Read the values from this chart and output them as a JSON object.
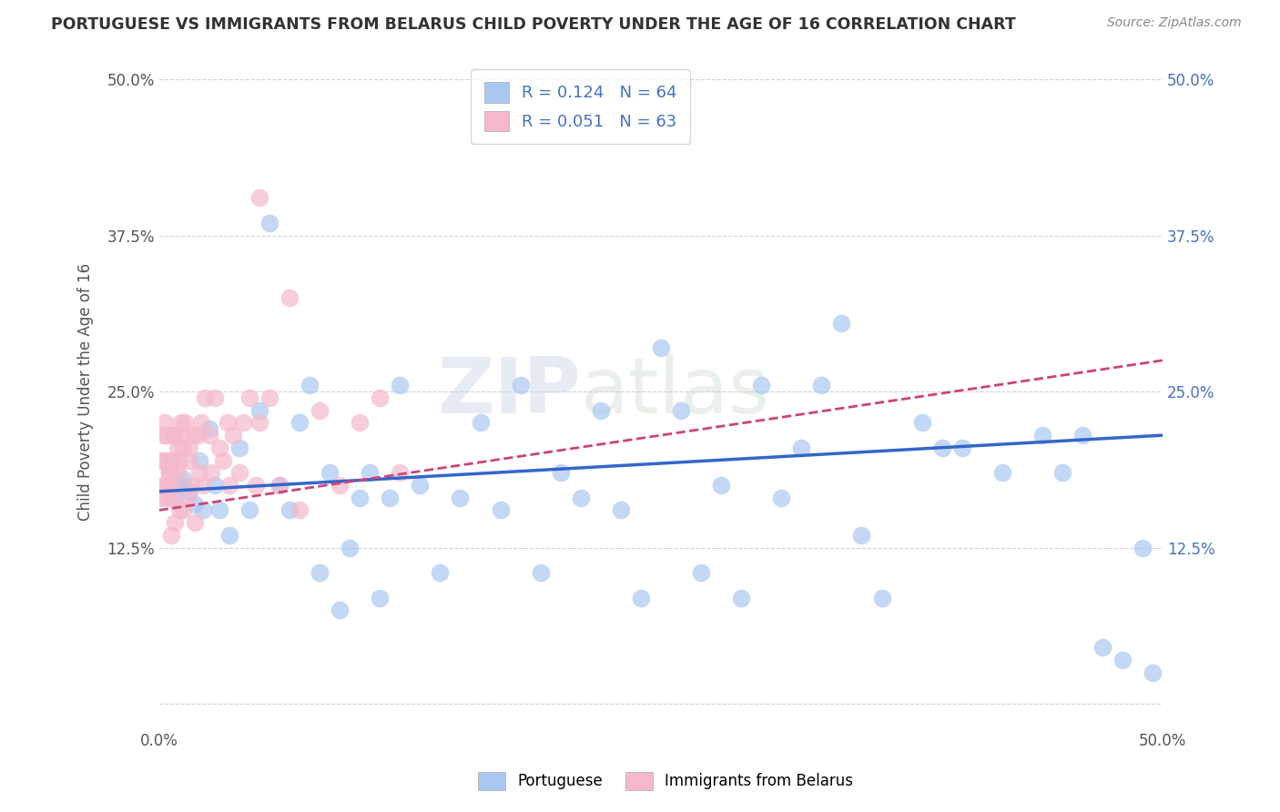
{
  "title": "PORTUGUESE VS IMMIGRANTS FROM BELARUS CHILD POVERTY UNDER THE AGE OF 16 CORRELATION CHART",
  "source": "Source: ZipAtlas.com",
  "ylabel": "Child Poverty Under the Age of 16",
  "xlim": [
    0,
    0.5
  ],
  "ylim": [
    -0.02,
    0.52
  ],
  "xticks": [
    0.0,
    0.5
  ],
  "yticks": [
    0.0,
    0.125,
    0.25,
    0.375,
    0.5
  ],
  "xtick_labels": [
    "0.0%",
    "50.0%"
  ],
  "ytick_labels": [
    "",
    "12.5%",
    "25.0%",
    "37.5%",
    "50.0%"
  ],
  "blue_R": 0.124,
  "blue_N": 64,
  "pink_R": 0.051,
  "pink_N": 63,
  "blue_color": "#a8c8f0",
  "pink_color": "#f5b8cb",
  "blue_line_color": "#3366cc",
  "pink_line_color": "#cc4477",
  "watermark_zip": "ZIP",
  "watermark_atlas": "atlas",
  "legend_label_blue": "Portuguese",
  "legend_label_pink": "Immigrants from Belarus",
  "background_color": "#ffffff",
  "grid_color": "#cccccc",
  "blue_x": [
    0.005,
    0.008,
    0.01,
    0.012,
    0.015,
    0.018,
    0.02,
    0.022,
    0.025,
    0.028,
    0.03,
    0.035,
    0.04,
    0.045,
    0.05,
    0.055,
    0.06,
    0.065,
    0.07,
    0.075,
    0.08,
    0.085,
    0.09,
    0.095,
    0.1,
    0.105,
    0.11,
    0.115,
    0.12,
    0.13,
    0.14,
    0.15,
    0.16,
    0.17,
    0.18,
    0.19,
    0.2,
    0.21,
    0.22,
    0.23,
    0.24,
    0.25,
    0.26,
    0.27,
    0.28,
    0.29,
    0.3,
    0.31,
    0.32,
    0.33,
    0.34,
    0.35,
    0.36,
    0.38,
    0.39,
    0.4,
    0.42,
    0.44,
    0.45,
    0.46,
    0.47,
    0.48,
    0.49,
    0.495
  ],
  "blue_y": [
    0.19,
    0.165,
    0.175,
    0.18,
    0.17,
    0.16,
    0.195,
    0.155,
    0.22,
    0.175,
    0.155,
    0.135,
    0.205,
    0.155,
    0.235,
    0.385,
    0.175,
    0.155,
    0.225,
    0.255,
    0.105,
    0.185,
    0.075,
    0.125,
    0.165,
    0.185,
    0.085,
    0.165,
    0.255,
    0.175,
    0.105,
    0.165,
    0.225,
    0.155,
    0.255,
    0.105,
    0.185,
    0.165,
    0.235,
    0.155,
    0.085,
    0.285,
    0.235,
    0.105,
    0.175,
    0.085,
    0.255,
    0.165,
    0.205,
    0.255,
    0.305,
    0.135,
    0.085,
    0.225,
    0.205,
    0.205,
    0.185,
    0.215,
    0.185,
    0.215,
    0.045,
    0.035,
    0.125,
    0.025
  ],
  "pink_x": [
    0.001,
    0.001,
    0.002,
    0.002,
    0.003,
    0.003,
    0.003,
    0.004,
    0.004,
    0.004,
    0.005,
    0.005,
    0.005,
    0.006,
    0.006,
    0.007,
    0.007,
    0.007,
    0.008,
    0.008,
    0.009,
    0.009,
    0.01,
    0.01,
    0.011,
    0.011,
    0.012,
    0.012,
    0.013,
    0.014,
    0.015,
    0.015,
    0.016,
    0.017,
    0.018,
    0.019,
    0.02,
    0.021,
    0.022,
    0.023,
    0.025,
    0.026,
    0.028,
    0.03,
    0.032,
    0.034,
    0.035,
    0.037,
    0.04,
    0.042,
    0.045,
    0.048,
    0.05,
    0.055,
    0.06,
    0.065,
    0.07,
    0.08,
    0.09,
    0.1,
    0.11,
    0.12,
    0.05
  ],
  "pink_y": [
    0.195,
    0.165,
    0.215,
    0.175,
    0.225,
    0.175,
    0.195,
    0.165,
    0.215,
    0.175,
    0.185,
    0.185,
    0.195,
    0.135,
    0.165,
    0.175,
    0.195,
    0.215,
    0.145,
    0.215,
    0.185,
    0.205,
    0.155,
    0.195,
    0.215,
    0.225,
    0.155,
    0.205,
    0.225,
    0.165,
    0.195,
    0.205,
    0.175,
    0.215,
    0.145,
    0.215,
    0.185,
    0.225,
    0.175,
    0.245,
    0.215,
    0.185,
    0.245,
    0.205,
    0.195,
    0.225,
    0.175,
    0.215,
    0.185,
    0.225,
    0.245,
    0.175,
    0.225,
    0.245,
    0.175,
    0.325,
    0.155,
    0.235,
    0.175,
    0.225,
    0.245,
    0.185,
    0.405
  ],
  "blue_trend_x": [
    0.0,
    0.5
  ],
  "blue_trend_y": [
    0.17,
    0.215
  ],
  "pink_trend_x": [
    0.0,
    0.5
  ],
  "pink_trend_y": [
    0.155,
    0.275
  ]
}
